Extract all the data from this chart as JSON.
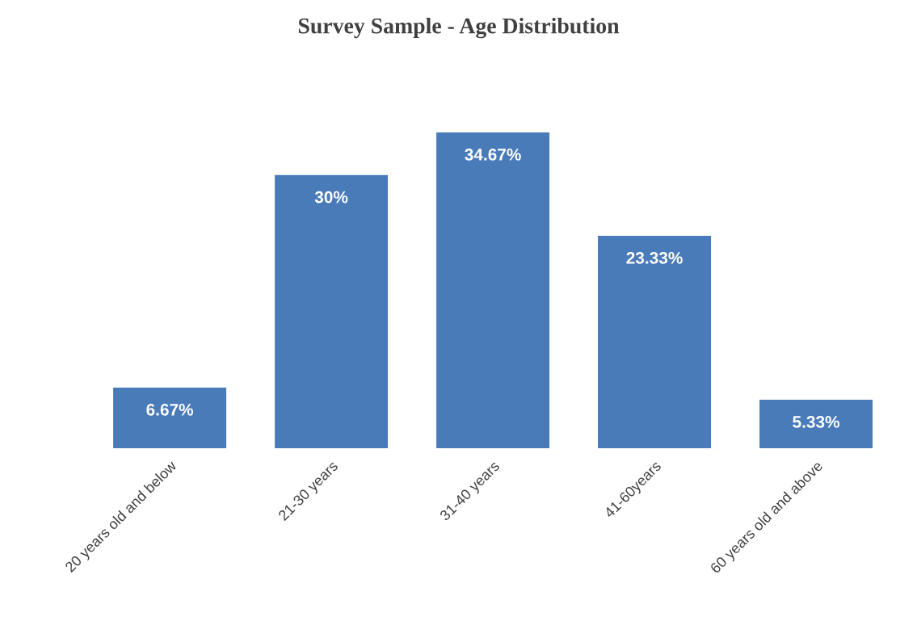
{
  "chart_data": {
    "type": "bar",
    "title": "Survey Sample - Age Distribution",
    "categories": [
      "20 years old and below",
      "21-30 years",
      "31-40 years",
      "41-60years",
      "60 years old and above"
    ],
    "values": [
      6.67,
      30,
      34.67,
      23.33,
      5.33
    ],
    "value_labels": [
      "6.67%",
      "30%",
      "34.67%",
      "23.33%",
      "5.33%"
    ],
    "color": "#4a7bb9",
    "grid": false,
    "legend": false
  }
}
